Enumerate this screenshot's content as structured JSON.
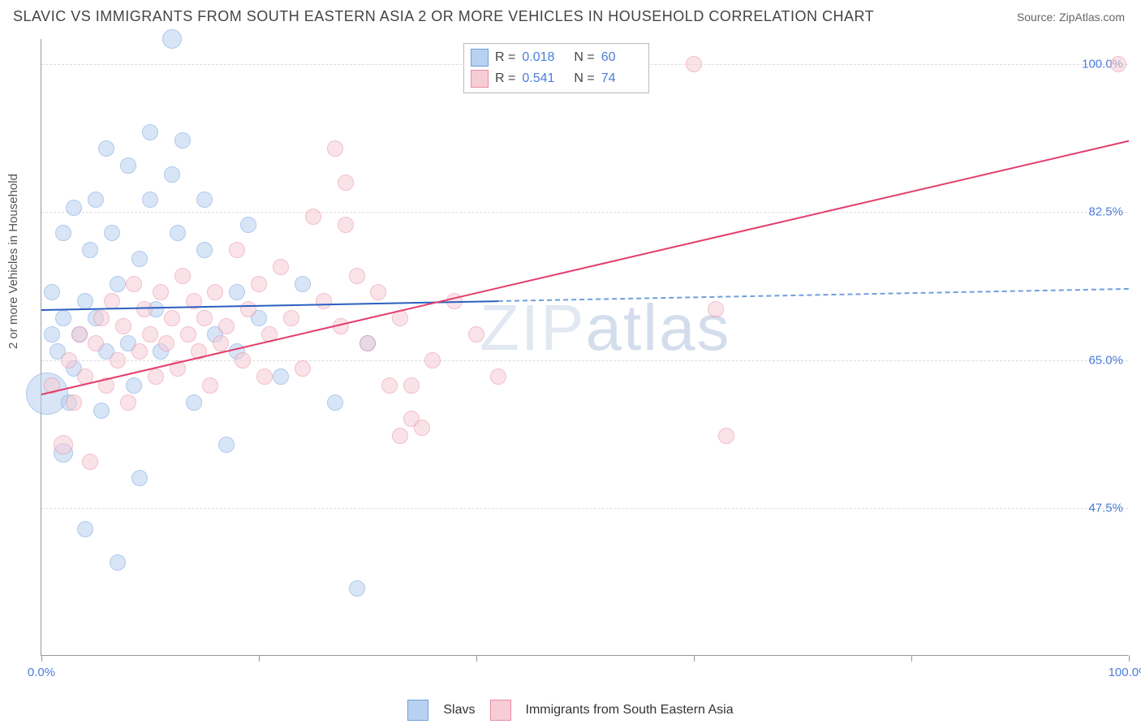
{
  "title": "SLAVIC VS IMMIGRANTS FROM SOUTH EASTERN ASIA 2 OR MORE VEHICLES IN HOUSEHOLD CORRELATION CHART",
  "source": "Source: ZipAtlas.com",
  "ylabel": "2 or more Vehicles in Household",
  "watermark_left": "ZIP",
  "watermark_right": "atlas",
  "chart": {
    "type": "scatter",
    "xlim": [
      0,
      100
    ],
    "ylim": [
      30,
      103
    ],
    "ytick_values": [
      47.5,
      65.0,
      82.5,
      100.0
    ],
    "ytick_labels": [
      "47.5%",
      "65.0%",
      "82.5%",
      "100.0%"
    ],
    "ytick_color": "#4a7ddb",
    "xtick_values": [
      0,
      20,
      40,
      60,
      80,
      100
    ],
    "xtick_labels_shown": {
      "0": "0.0%",
      "100": "100.0%"
    },
    "xtick_color": "#4a7ddb",
    "grid_color": "#dddddd",
    "axis_color": "#999999",
    "background": "#ffffff",
    "series": [
      {
        "name": "Slavs",
        "fill": "#b9d1f0",
        "stroke": "#6f9fdc",
        "fill_opacity": 0.55,
        "marker_radius": 8,
        "R": "0.018",
        "N": "60",
        "trend": {
          "x1": 0,
          "y1": 71.0,
          "x2": 100,
          "y2": 73.5,
          "solid_until_x": 42,
          "color_solid": "#2b5fc0",
          "color_dash": "#6f9fdc",
          "width": 2
        },
        "points": [
          [
            0.5,
            61,
            26
          ],
          [
            1,
            68,
            10
          ],
          [
            1,
            73,
            10
          ],
          [
            1.5,
            66,
            10
          ],
          [
            2,
            70,
            10
          ],
          [
            2,
            80,
            10
          ],
          [
            2,
            54,
            12
          ],
          [
            2.5,
            60,
            10
          ],
          [
            3,
            83,
            10
          ],
          [
            3,
            64,
            10
          ],
          [
            3.5,
            68,
            10
          ],
          [
            4,
            72,
            10
          ],
          [
            4,
            45,
            10
          ],
          [
            4.5,
            78,
            10
          ],
          [
            5,
            84,
            10
          ],
          [
            5,
            70,
            10
          ],
          [
            5.5,
            59,
            10
          ],
          [
            6,
            66,
            10
          ],
          [
            6,
            90,
            10
          ],
          [
            6.5,
            80,
            10
          ],
          [
            7,
            74,
            10
          ],
          [
            7,
            41,
            10
          ],
          [
            8,
            67,
            10
          ],
          [
            8,
            88,
            10
          ],
          [
            8.5,
            62,
            10
          ],
          [
            9,
            77,
            10
          ],
          [
            9,
            51,
            10
          ],
          [
            10,
            84,
            10
          ],
          [
            10,
            92,
            10
          ],
          [
            10.5,
            71,
            10
          ],
          [
            11,
            66,
            10
          ],
          [
            12,
            103,
            12
          ],
          [
            12,
            87,
            10
          ],
          [
            12.5,
            80,
            10
          ],
          [
            13,
            91,
            10
          ],
          [
            14,
            60,
            10
          ],
          [
            15,
            78,
            10
          ],
          [
            15,
            84,
            10
          ],
          [
            16,
            68,
            10
          ],
          [
            17,
            55,
            10
          ],
          [
            18,
            73,
            10
          ],
          [
            18,
            66,
            10
          ],
          [
            19,
            81,
            10
          ],
          [
            20,
            70,
            10
          ],
          [
            22,
            63,
            10
          ],
          [
            24,
            74,
            10
          ],
          [
            27,
            60,
            10
          ],
          [
            29,
            38,
            10
          ],
          [
            30,
            67,
            10
          ]
        ]
      },
      {
        "name": "Immigrants from South Eastern Asia",
        "fill": "#f6cdd7",
        "stroke": "#e98ba3",
        "fill_opacity": 0.55,
        "marker_radius": 8,
        "R": "0.541",
        "N": "74",
        "trend": {
          "x1": 0,
          "y1": 61.0,
          "x2": 100,
          "y2": 91.0,
          "solid_until_x": 100,
          "color_solid": "#e23e6b",
          "width": 2
        },
        "points": [
          [
            1,
            62,
            10
          ],
          [
            2,
            55,
            12
          ],
          [
            2.5,
            65,
            10
          ],
          [
            3,
            60,
            10
          ],
          [
            3.5,
            68,
            10
          ],
          [
            4,
            63,
            10
          ],
          [
            4.5,
            53,
            10
          ],
          [
            5,
            67,
            10
          ],
          [
            5.5,
            70,
            10
          ],
          [
            6,
            62,
            10
          ],
          [
            6.5,
            72,
            10
          ],
          [
            7,
            65,
            10
          ],
          [
            7.5,
            69,
            10
          ],
          [
            8,
            60,
            10
          ],
          [
            8.5,
            74,
            10
          ],
          [
            9,
            66,
            10
          ],
          [
            9.5,
            71,
            10
          ],
          [
            10,
            68,
            10
          ],
          [
            10.5,
            63,
            10
          ],
          [
            11,
            73,
            10
          ],
          [
            11.5,
            67,
            10
          ],
          [
            12,
            70,
            10
          ],
          [
            12.5,
            64,
            10
          ],
          [
            13,
            75,
            10
          ],
          [
            13.5,
            68,
            10
          ],
          [
            14,
            72,
            10
          ],
          [
            14.5,
            66,
            10
          ],
          [
            15,
            70,
            10
          ],
          [
            15.5,
            62,
            10
          ],
          [
            16,
            73,
            10
          ],
          [
            16.5,
            67,
            10
          ],
          [
            17,
            69,
            10
          ],
          [
            18,
            78,
            10
          ],
          [
            18.5,
            65,
            10
          ],
          [
            19,
            71,
            10
          ],
          [
            20,
            74,
            10
          ],
          [
            20.5,
            63,
            10
          ],
          [
            21,
            68,
            10
          ],
          [
            22,
            76,
            10
          ],
          [
            23,
            70,
            10
          ],
          [
            24,
            64,
            10
          ],
          [
            25,
            82,
            10
          ],
          [
            26,
            72,
            10
          ],
          [
            27,
            90,
            10
          ],
          [
            27.5,
            69,
            10
          ],
          [
            28,
            86,
            10
          ],
          [
            28,
            81,
            10
          ],
          [
            29,
            75,
            10
          ],
          [
            30,
            67,
            10
          ],
          [
            31,
            73,
            10
          ],
          [
            32,
            62,
            10
          ],
          [
            33,
            70,
            10
          ],
          [
            33,
            56,
            10
          ],
          [
            34,
            58,
            10
          ],
          [
            34,
            62,
            10
          ],
          [
            35,
            57,
            10
          ],
          [
            36,
            65,
            10
          ],
          [
            38,
            72,
            10
          ],
          [
            40,
            68,
            10
          ],
          [
            42,
            63,
            10
          ],
          [
            60,
            100,
            10
          ],
          [
            62,
            71,
            10
          ],
          [
            63,
            56,
            10
          ],
          [
            99,
            100,
            10
          ]
        ]
      }
    ]
  },
  "stats_labels": {
    "R": "R =",
    "N": "N ="
  },
  "stats_value_color": "#4a7ddb",
  "legend": {
    "series1_label": "Slavs",
    "series2_label": "Immigrants from South Eastern Asia"
  }
}
